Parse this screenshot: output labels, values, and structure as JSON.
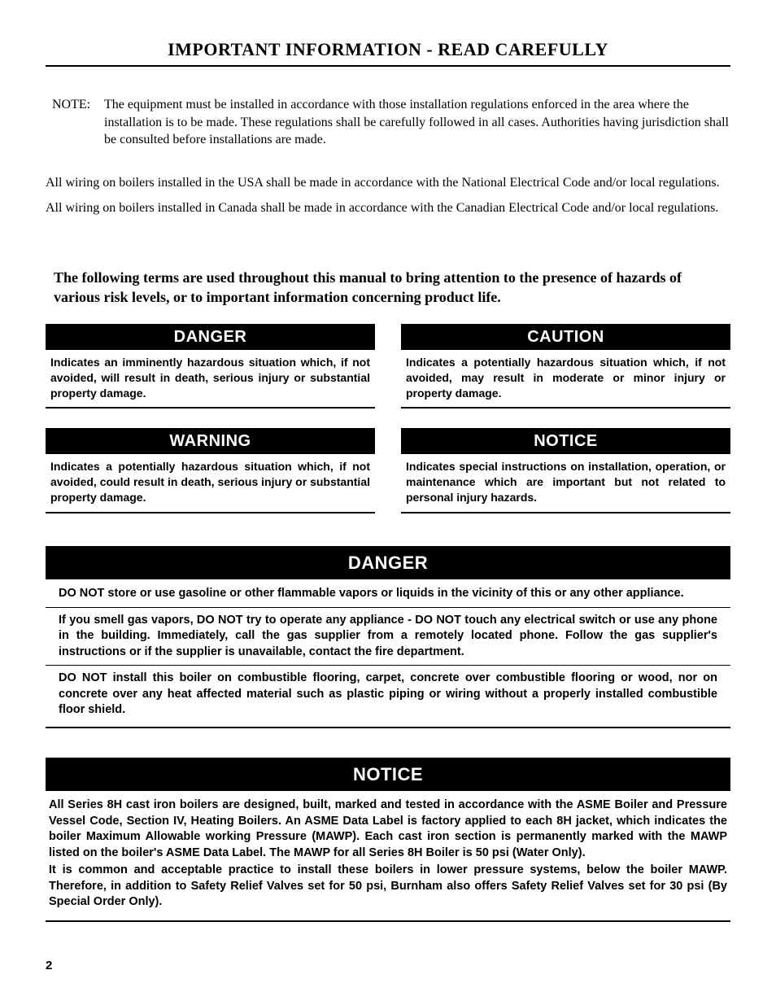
{
  "page": {
    "title": "IMPORTANT  INFORMATION - READ CAREFULLY",
    "number": "2"
  },
  "note": {
    "label": "NOTE:",
    "body": "The equipment must be installed in accordance with those installation regulations enforced in the area where the installation is to be made.  These regulations shall be carefully followed in all cases.  Authorities having jurisdiction shall be consulted before installations are made."
  },
  "wiring": {
    "usa": "All wiring on boilers installed in the USA shall be made in accordance with the National Electrical Code and/or local regulations.",
    "canada": "All wiring on boilers installed in Canada shall be made in accordance with the Canadian Electrical Code and/or local regulations."
  },
  "terms_intro": "The following terms are used throughout this manual to bring attention to the presence of hazards of various risk levels, or to important information concerning product life.",
  "hazards": {
    "danger": {
      "title": "DANGER",
      "body": "Indicates an imminently hazardous situation which, if not avoided, will result in death, serious injury or substantial property damage."
    },
    "caution": {
      "title": "CAUTION",
      "body": "Indicates a potentially hazardous situation which, if not avoided, may result in moderate or minor injury or property damage."
    },
    "warning": {
      "title": "WARNING",
      "body": "Indicates a potentially hazardous situation which, if not avoided, could result in death, serious injury or substantial property damage."
    },
    "notice": {
      "title": "NOTICE",
      "body": "Indicates special instructions on installation, operation, or maintenance which are important but not related to personal injury hazards."
    }
  },
  "danger_full": {
    "title": "DANGER",
    "p1": "DO NOT store or use gasoline or other flammable vapors or liquids in the vicinity of this or any other appliance.",
    "p2": "If you smell gas vapors, DO NOT try to operate any appliance - DO NOT touch any electrical switch or use any phone in the building.  Immediately, call the gas supplier from a remotely located phone.  Follow the gas supplier's instructions or if the supplier is unavailable, contact the fire department.",
    "p3": "DO NOT install this boiler on combustible flooring, carpet, concrete over combustible flooring or wood, nor on concrete over any heat affected material such as plastic piping or wiring without a properly installed combustible floor shield."
  },
  "notice_full": {
    "title": "NOTICE",
    "p1": "All Series 8H cast iron boilers are designed, built, marked and tested in accordance with the ASME Boiler and Pressure Vessel Code, Section IV, Heating Boilers.  An ASME Data Label is factory applied to each 8H jacket, which indicates the boiler Maximum Allowable working Pressure (MAWP).  Each cast iron section is permanently marked with the MAWP listed on the boiler's ASME Data Label.  The MAWP for all Series 8H Boiler is 50 psi (Water Only).",
    "p2": "It is common and acceptable practice to install these boilers in lower pressure systems, below the boiler MAWP.  Therefore, in addition to Safety Relief Valves set for 50 psi, Burnham  also offers Safety Relief Valves set for 30 psi (By Special Order Only)."
  }
}
